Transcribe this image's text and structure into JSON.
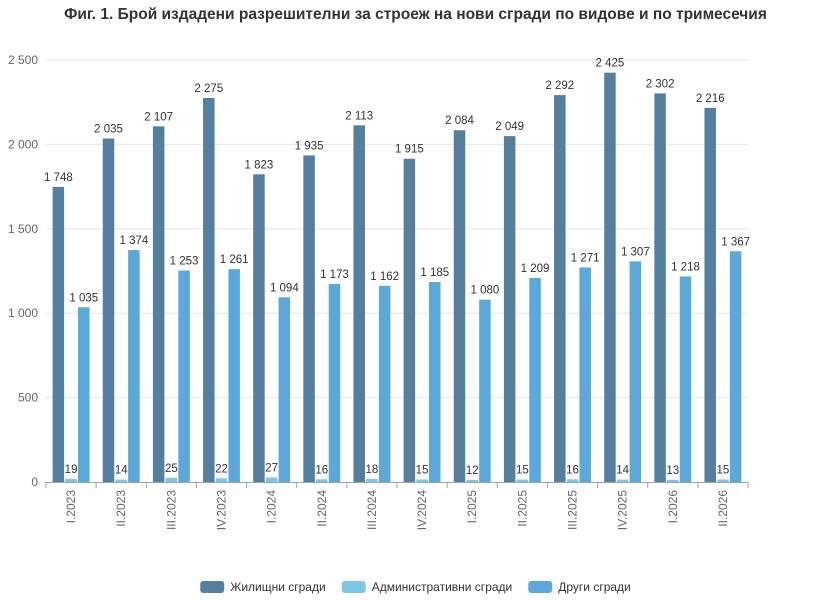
{
  "chart_data": {
    "type": "bar",
    "title": "Фиг. 1. Брой издадени разрешителни за строеж на нови сгради по видове и по тримесечия",
    "categories": [
      "I.2023",
      "II.2023",
      "III.2023",
      "IV.2023",
      "I.2024",
      "II.2024",
      "III.2024",
      "IV.2024",
      "I.2025",
      "II.2025",
      "III.2025",
      "IV.2025",
      "I.2026",
      "II.2026"
    ],
    "series": [
      {
        "name": "Жилищни сгради",
        "color": "#557f9f",
        "values": [
          1748,
          2035,
          2107,
          2275,
          1823,
          1935,
          2113,
          1915,
          2084,
          2049,
          2292,
          2425,
          2302,
          2216
        ]
      },
      {
        "name": "Административни сгради",
        "color": "#7cc8e4",
        "values": [
          19,
          14,
          25,
          22,
          27,
          16,
          18,
          15,
          12,
          15,
          16,
          14,
          13,
          15
        ]
      },
      {
        "name": "Други сгради",
        "color": "#5ba9db",
        "values": [
          1035,
          1374,
          1253,
          1261,
          1094,
          1173,
          1162,
          1185,
          1080,
          1209,
          1271,
          1307,
          1218,
          1367
        ]
      }
    ],
    "ylim": [
      0,
      2500
    ],
    "yticks": [
      0,
      500,
      1000,
      1500,
      2000,
      2500
    ],
    "ytick_labels": [
      "0",
      "500",
      "1 000",
      "1 500",
      "2 000",
      "2 500"
    ],
    "grid": true,
    "legend": "bottom-center",
    "xlabel": "",
    "ylabel": ""
  }
}
